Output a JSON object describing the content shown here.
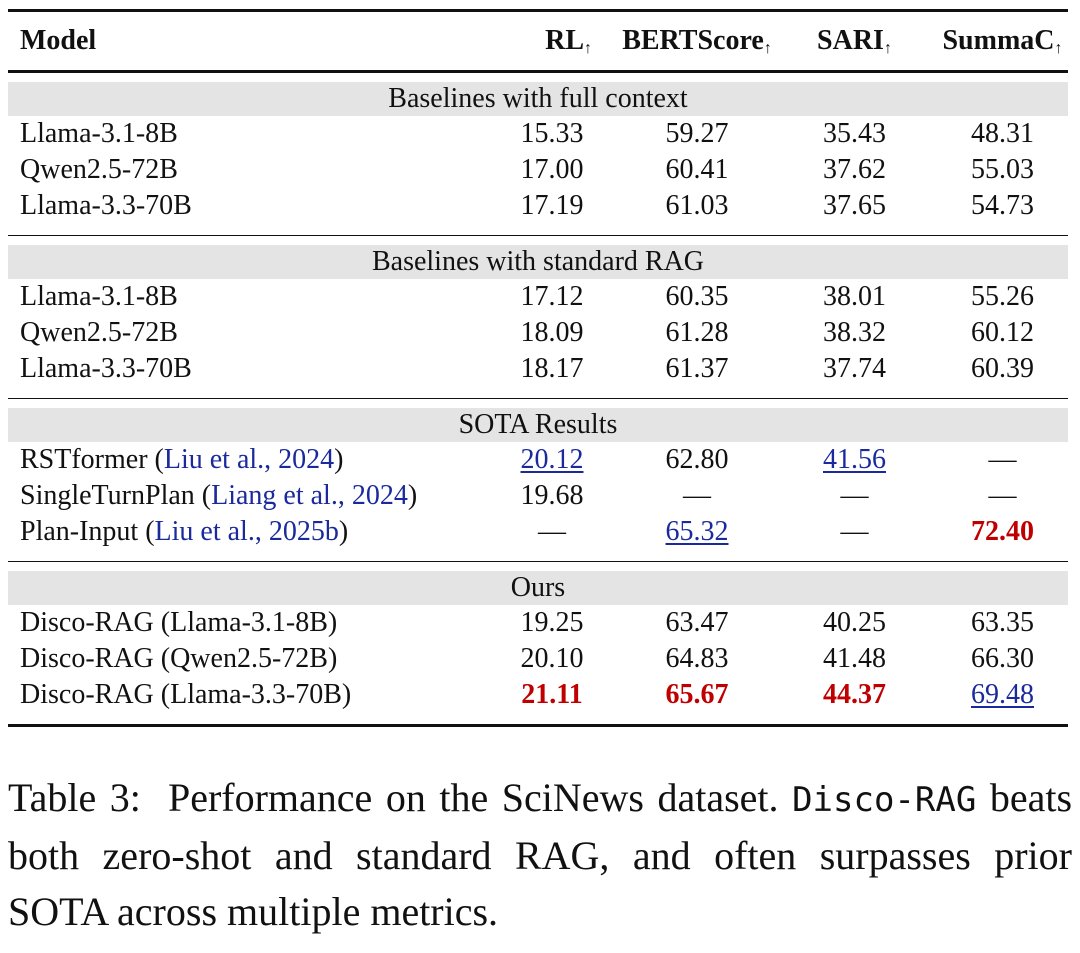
{
  "table": {
    "header": [
      {
        "text": "Model"
      },
      {
        "text": "RL",
        "arrow": "↑"
      },
      {
        "text": "BERTScore",
        "arrow": "↑"
      },
      {
        "text": "SARI",
        "arrow": "↑"
      },
      {
        "text": "SummaC",
        "arrow": "↑"
      }
    ],
    "sections": [
      {
        "title": "Baselines with full context",
        "rows": [
          {
            "name": "Llama-3.1-8B",
            "values": [
              "15.33",
              "59.27",
              "35.43",
              "48.31"
            ]
          },
          {
            "name": "Qwen2.5-72B",
            "values": [
              "17.00",
              "60.41",
              "37.62",
              "55.03"
            ]
          },
          {
            "name": "Llama-3.3-70B",
            "values": [
              "17.19",
              "61.03",
              "37.65",
              "54.73"
            ]
          }
        ]
      },
      {
        "title": "Baselines with standard RAG",
        "rows": [
          {
            "name": "Llama-3.1-8B",
            "values": [
              "17.12",
              "60.35",
              "38.01",
              "55.26"
            ]
          },
          {
            "name": "Qwen2.5-72B",
            "values": [
              "18.09",
              "61.28",
              "38.32",
              "60.12"
            ]
          },
          {
            "name": "Llama-3.3-70B",
            "values": [
              "18.17",
              "61.37",
              "37.74",
              "60.39"
            ]
          }
        ]
      },
      {
        "title": "SOTA Results",
        "rows": [
          {
            "name": "RSTformer (",
            "citation": "Liu et al., 2024",
            "name_end": ")",
            "values": [
              "20.12",
              "62.80",
              "41.56",
              "—"
            ]
          },
          {
            "name": "SingleTurnPlan (",
            "citation": "Liang et al., 2024",
            "name_end": ")",
            "values": [
              "19.68",
              "—",
              "—",
              "—"
            ]
          },
          {
            "name": "Plan-Input (",
            "citation": "Liu et al., 2025b",
            "name_end": ")",
            "values": [
              "—",
              "65.32",
              "—",
              "72.40"
            ]
          }
        ]
      },
      {
        "title": "Ours",
        "rows": [
          {
            "name": "Disco-RAG (Llama-3.1-8B)",
            "values": [
              "19.25",
              "63.47",
              "40.25",
              "63.35"
            ]
          },
          {
            "name": "Disco-RAG (Qwen2.5-72B)",
            "values": [
              "20.10",
              "64.83",
              "41.48",
              "66.30"
            ]
          },
          {
            "name": "Disco-RAG (Llama-3.3-70B)",
            "values": [
              "21.11",
              "65.67",
              "44.37",
              "69.48"
            ]
          }
        ]
      }
    ]
  },
  "caption": {
    "label": "Table 3:",
    "text": "Performance on the SciNews dataset.",
    "code": "Disco-RAG",
    "rest": "beats both zero-shot and standard RAG, and often surpasses prior SOTA across multiple metrics."
  }
}
